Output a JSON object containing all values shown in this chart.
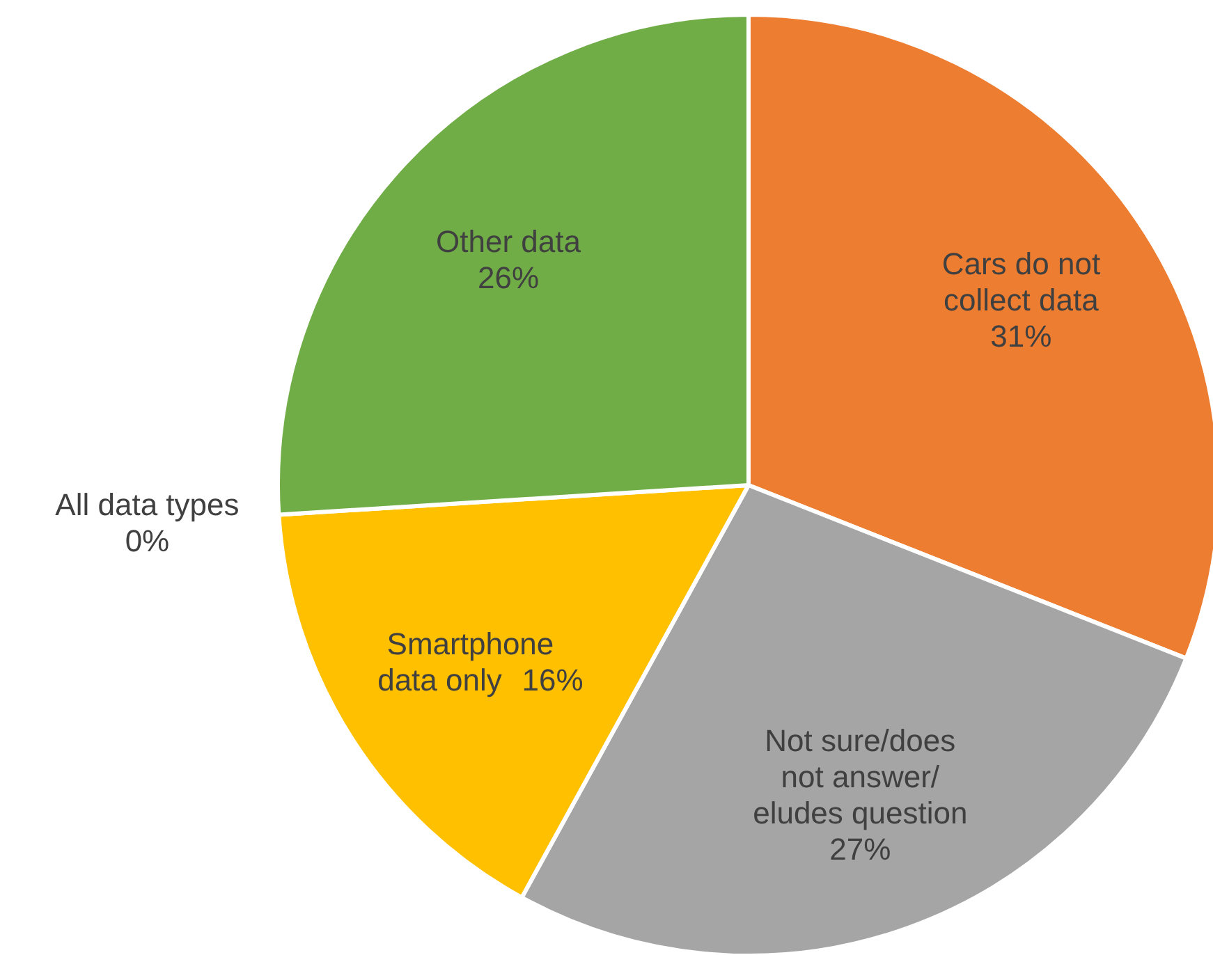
{
  "chart_data": {
    "type": "pie",
    "categories": [
      "Cars do not collect data",
      "Not sure/does not answer/eludes question",
      "Smartphone data only",
      "All data types",
      "Other data"
    ],
    "values": [
      31,
      27,
      16,
      0,
      26
    ],
    "colors": [
      "#ed7d31",
      "#a5a5a5",
      "#ffc000",
      "#4472c4",
      "#70ad47"
    ],
    "value_labels": [
      "31%",
      "27%",
      "16%",
      "0%",
      "26%"
    ]
  }
}
